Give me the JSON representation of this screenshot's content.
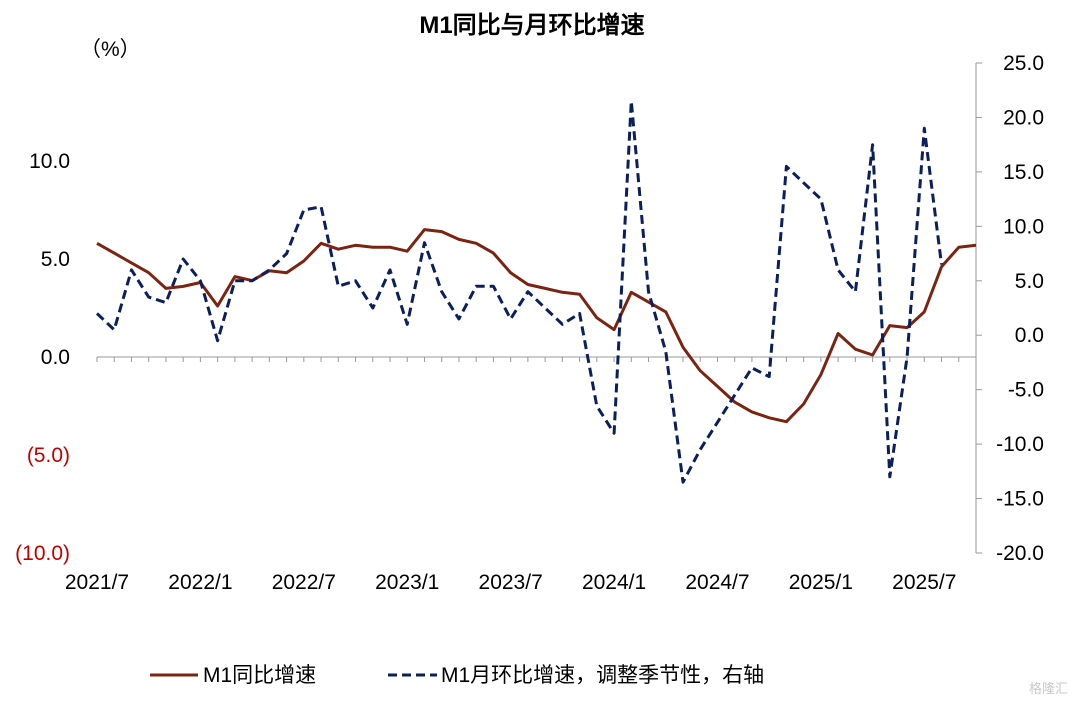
{
  "chart_data": {
    "type": "line",
    "title": "M1同比与月环比增速",
    "left_unit": "（%）",
    "x_ticks": [
      "2021/7",
      "2022/1",
      "2022/7",
      "2023/1",
      "2023/7",
      "2024/1",
      "2024/7",
      "2025/1",
      "2025/7"
    ],
    "y_left": {
      "range": [
        -10,
        15
      ],
      "ticks": [
        10,
        5,
        0,
        -5,
        -10
      ],
      "labels": [
        "10.0",
        "5.0",
        "0.0",
        "(5.0)",
        "(10.0)"
      ]
    },
    "y_right": {
      "range": [
        -20,
        25
      ],
      "ticks": [
        25,
        20,
        15,
        10,
        5,
        0,
        -5,
        -10,
        -15,
        -20
      ],
      "labels": [
        "25.0",
        "20.0",
        "15.0",
        "10.0",
        "5.0",
        "0.0",
        "-5.0",
        "-10.0",
        "-15.0",
        "-20.0"
      ]
    },
    "x_start": "2021/7",
    "series": [
      {
        "name": "M1同比增速",
        "axis": "left",
        "color": "#7b2412",
        "dash": "solid",
        "values": [
          5.8,
          5.3,
          4.8,
          4.3,
          3.5,
          3.6,
          3.8,
          2.6,
          4.1,
          3.9,
          4.4,
          4.3,
          4.9,
          5.8,
          5.5,
          5.7,
          5.6,
          5.6,
          5.4,
          6.5,
          6.4,
          6.0,
          5.8,
          5.3,
          4.3,
          3.7,
          3.5,
          3.3,
          3.2,
          2.0,
          1.4,
          3.3,
          2.8,
          2.3,
          0.5,
          -0.7,
          -1.5,
          -2.3,
          -2.8,
          -3.1,
          -3.3,
          -2.4,
          -0.9,
          1.2,
          0.4,
          0.1,
          1.6,
          1.5,
          2.3,
          4.6,
          5.6,
          5.7
        ]
      },
      {
        "name": "M1月环比增速，调整季节性，右轴",
        "axis": "right",
        "color": "#0b1f5c",
        "dash": "dashed",
        "values": [
          2.0,
          0.5,
          6.0,
          3.5,
          3.0,
          7.0,
          5.0,
          -0.5,
          5.0,
          5.0,
          6.0,
          7.5,
          11.5,
          11.8,
          4.5,
          5.0,
          2.5,
          6.0,
          1.0,
          8.5,
          4.0,
          1.5,
          4.5,
          4.5,
          1.5,
          4.0,
          2.5,
          1.0,
          2.0,
          -6.5,
          -9.0,
          21.5,
          4.0,
          -1.5,
          -13.5,
          -10.5,
          -8.0,
          -5.5,
          -3.0,
          -3.8,
          15.5,
          14.0,
          12.5,
          6.0,
          4.0,
          17.5,
          -13.0,
          -2.0,
          19.0,
          6.5
        ]
      }
    ],
    "legend_position": "bottom",
    "watermark": "格隆汇"
  }
}
